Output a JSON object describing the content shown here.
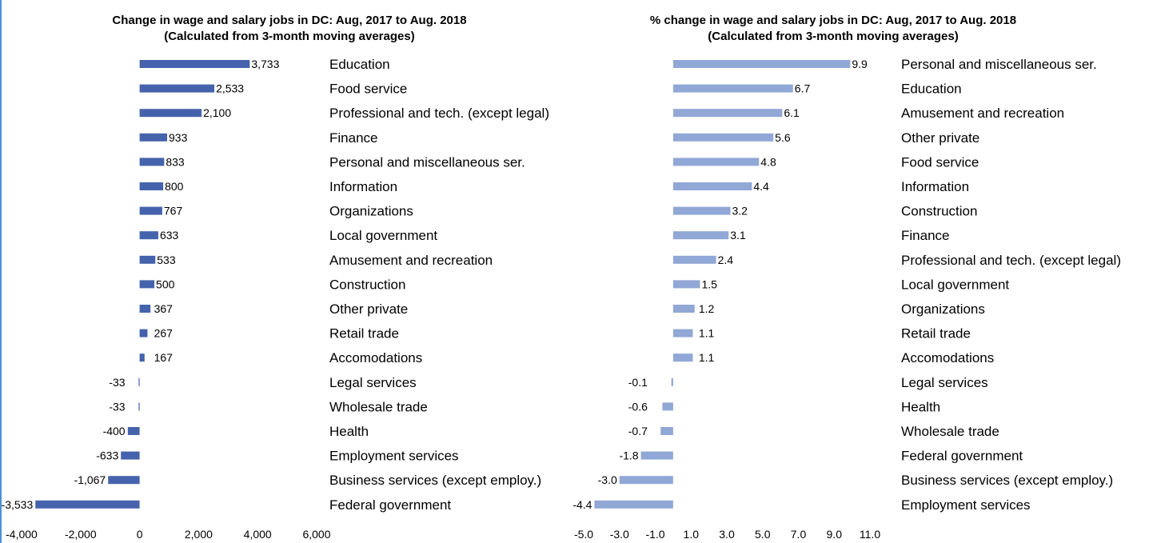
{
  "chart_data": [
    {
      "type": "bar",
      "orientation": "horizontal",
      "title": "Change in wage and salary jobs in DC: Aug, 2017 to Aug. 2018",
      "subtitle": "(Calculated from 3-month moving averages)",
      "categories": [
        "Education",
        "Food service",
        "Professional and tech. (except legal)",
        "Finance",
        "Personal and miscellaneous ser.",
        "Information",
        "Organizations",
        "Local government",
        "Amusement and recreation",
        "Construction",
        "Other private",
        "Retail trade",
        "Accomodations",
        "Legal services",
        "Wholesale trade",
        "Health",
        "Employment services",
        "Business services (except employ.)",
        "Federal government"
      ],
      "values": [
        3733,
        2533,
        2100,
        933,
        833,
        800,
        767,
        633,
        533,
        500,
        367,
        267,
        167,
        -33,
        -33,
        -400,
        -633,
        -1067,
        -3533
      ],
      "value_labels": [
        "3,733",
        "2,533",
        "2,100",
        "933",
        "833",
        "800",
        "767",
        "633",
        "533",
        "500",
        "367",
        "267",
        "167",
        "-33",
        "-33",
        "-400",
        "-633",
        "-1,067",
        "-3,533"
      ],
      "xlim": [
        -4000,
        6000
      ],
      "ticks": [
        -4000,
        -2000,
        0,
        2000,
        4000,
        6000
      ],
      "tick_labels": [
        "-4,000",
        "-2,000",
        "0",
        "2,000",
        "4,000",
        "6,000"
      ],
      "bar_color": "#4563ac",
      "grid": false
    },
    {
      "type": "bar",
      "orientation": "horizontal",
      "title": "% change in wage and salary jobs in DC: Aug, 2017 to Aug. 2018",
      "subtitle": "(Calculated from 3-month moving averages)",
      "categories": [
        "Personal and miscellaneous ser.",
        "Education",
        "Amusement and recreation",
        "Other private",
        "Food service",
        "Information",
        "Construction",
        "Finance",
        "Professional and tech. (except legal)",
        "Local government",
        "Organizations",
        "Retail trade",
        "Accomodations",
        "Legal services",
        "Health",
        "Wholesale trade",
        "Federal government",
        "Business services (except employ.)",
        "Employment services"
      ],
      "values": [
        9.9,
        6.7,
        6.1,
        5.6,
        4.8,
        4.4,
        3.2,
        3.1,
        2.4,
        1.5,
        1.2,
        1.1,
        1.1,
        -0.1,
        -0.6,
        -0.7,
        -1.8,
        -3.0,
        -4.4
      ],
      "value_labels": [
        "9.9",
        "6.7",
        "6.1",
        "5.6",
        "4.8",
        "4.4",
        "3.2",
        "3.1",
        "2.4",
        "1.5",
        "1.2",
        "1.1",
        "1.1",
        "-0.1",
        "-0.6",
        "-0.7",
        "-1.8",
        "-3.0",
        "-4.4"
      ],
      "xlim": [
        -5.0,
        11.0
      ],
      "ticks": [
        -5,
        -3,
        -1,
        1,
        3,
        5,
        7,
        9,
        11
      ],
      "tick_labels": [
        "-5.0",
        "-3.0",
        "-1.0",
        "1.0",
        "3.0",
        "5.0",
        "7.0",
        "9.0",
        "11.0"
      ],
      "bar_color": "#91a7d6",
      "grid": false
    }
  ]
}
